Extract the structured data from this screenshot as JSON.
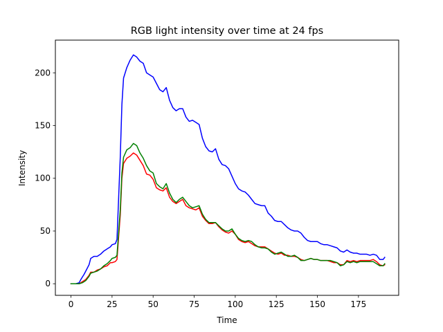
{
  "chart_data": {
    "type": "line",
    "title": "RGB light intensity over time at 24 fps",
    "xlabel": "Time",
    "ylabel": "Intensity",
    "xlim": [
      -9.5,
      199.5
    ],
    "ylim": [
      -11,
      231
    ],
    "xticks": [
      0,
      25,
      50,
      75,
      100,
      125,
      150,
      175
    ],
    "yticks": [
      0,
      50,
      100,
      150,
      200
    ],
    "grid": false,
    "legend": "none",
    "series": [
      {
        "color": "#0000ff",
        "points": [
          [
            0,
            0
          ],
          [
            3,
            0
          ],
          [
            5,
            1
          ],
          [
            6,
            4
          ],
          [
            8,
            9
          ],
          [
            10,
            15
          ],
          [
            11,
            18
          ],
          [
            12,
            24
          ],
          [
            14,
            26
          ],
          [
            16,
            26
          ],
          [
            18,
            28
          ],
          [
            20,
            31
          ],
          [
            22,
            33
          ],
          [
            24,
            35
          ],
          [
            25,
            37
          ],
          [
            27,
            38
          ],
          [
            28,
            42
          ],
          [
            30,
            120
          ],
          [
            31,
            170
          ],
          [
            32,
            195
          ],
          [
            34,
            205
          ],
          [
            36,
            212
          ],
          [
            38,
            217
          ],
          [
            40,
            215
          ],
          [
            42,
            211
          ],
          [
            44,
            209
          ],
          [
            46,
            200
          ],
          [
            48,
            198
          ],
          [
            50,
            196
          ],
          [
            52,
            190
          ],
          [
            54,
            184
          ],
          [
            56,
            182
          ],
          [
            58,
            186
          ],
          [
            60,
            174
          ],
          [
            62,
            167
          ],
          [
            64,
            164
          ],
          [
            66,
            166
          ],
          [
            68,
            166
          ],
          [
            70,
            158
          ],
          [
            72,
            154
          ],
          [
            74,
            155
          ],
          [
            76,
            153
          ],
          [
            78,
            151
          ],
          [
            80,
            138
          ],
          [
            82,
            130
          ],
          [
            84,
            126
          ],
          [
            86,
            125
          ],
          [
            88,
            128
          ],
          [
            90,
            118
          ],
          [
            92,
            113
          ],
          [
            94,
            112
          ],
          [
            96,
            109
          ],
          [
            98,
            102
          ],
          [
            100,
            95
          ],
          [
            102,
            90
          ],
          [
            104,
            88
          ],
          [
            106,
            87
          ],
          [
            108,
            84
          ],
          [
            110,
            80
          ],
          [
            112,
            76
          ],
          [
            114,
            75
          ],
          [
            116,
            74
          ],
          [
            118,
            74
          ],
          [
            120,
            67
          ],
          [
            122,
            64
          ],
          [
            124,
            60
          ],
          [
            126,
            59
          ],
          [
            128,
            59
          ],
          [
            130,
            56
          ],
          [
            132,
            53
          ],
          [
            134,
            51
          ],
          [
            136,
            50
          ],
          [
            138,
            50
          ],
          [
            140,
            48
          ],
          [
            142,
            44
          ],
          [
            144,
            41
          ],
          [
            146,
            40
          ],
          [
            148,
            40
          ],
          [
            150,
            40
          ],
          [
            152,
            38
          ],
          [
            154,
            37
          ],
          [
            156,
            37
          ],
          [
            158,
            36
          ],
          [
            160,
            35
          ],
          [
            162,
            34
          ],
          [
            164,
            31
          ],
          [
            166,
            30
          ],
          [
            168,
            32
          ],
          [
            170,
            30
          ],
          [
            172,
            29
          ],
          [
            174,
            29
          ],
          [
            176,
            28
          ],
          [
            178,
            28
          ],
          [
            180,
            28
          ],
          [
            182,
            27
          ],
          [
            184,
            28
          ],
          [
            186,
            27
          ],
          [
            188,
            23
          ],
          [
            190,
            23
          ],
          [
            191,
            25
          ]
        ]
      },
      {
        "color": "#ff0000",
        "points": [
          [
            0,
            0
          ],
          [
            3,
            0
          ],
          [
            5,
            0
          ],
          [
            7,
            2
          ],
          [
            9,
            4
          ],
          [
            11,
            8
          ],
          [
            12,
            11
          ],
          [
            14,
            11
          ],
          [
            16,
            13
          ],
          [
            18,
            14
          ],
          [
            20,
            16
          ],
          [
            22,
            17
          ],
          [
            24,
            20
          ],
          [
            25,
            20
          ],
          [
            27,
            21
          ],
          [
            28,
            23
          ],
          [
            30,
            65
          ],
          [
            31,
            100
          ],
          [
            32,
            114
          ],
          [
            34,
            119
          ],
          [
            36,
            121
          ],
          [
            38,
            124
          ],
          [
            40,
            122
          ],
          [
            42,
            117
          ],
          [
            44,
            112
          ],
          [
            46,
            104
          ],
          [
            48,
            103
          ],
          [
            50,
            99
          ],
          [
            52,
            91
          ],
          [
            54,
            89
          ],
          [
            56,
            88
          ],
          [
            58,
            91
          ],
          [
            60,
            82
          ],
          [
            62,
            78
          ],
          [
            64,
            76
          ],
          [
            66,
            78
          ],
          [
            68,
            80
          ],
          [
            70,
            74
          ],
          [
            72,
            72
          ],
          [
            74,
            71
          ],
          [
            76,
            70
          ],
          [
            78,
            72
          ],
          [
            80,
            64
          ],
          [
            82,
            60
          ],
          [
            84,
            57
          ],
          [
            86,
            57
          ],
          [
            88,
            58
          ],
          [
            90,
            54
          ],
          [
            92,
            51
          ],
          [
            94,
            49
          ],
          [
            96,
            48
          ],
          [
            98,
            50
          ],
          [
            100,
            47
          ],
          [
            102,
            42
          ],
          [
            104,
            40
          ],
          [
            106,
            39
          ],
          [
            108,
            40
          ],
          [
            110,
            38
          ],
          [
            112,
            36
          ],
          [
            114,
            35
          ],
          [
            116,
            35
          ],
          [
            118,
            35
          ],
          [
            120,
            33
          ],
          [
            122,
            31
          ],
          [
            124,
            29
          ],
          [
            126,
            28
          ],
          [
            128,
            29
          ],
          [
            130,
            27
          ],
          [
            132,
            27
          ],
          [
            134,
            26
          ],
          [
            136,
            26
          ],
          [
            138,
            25
          ],
          [
            140,
            23
          ],
          [
            142,
            22
          ],
          [
            144,
            23
          ],
          [
            146,
            24
          ],
          [
            148,
            23
          ],
          [
            150,
            23
          ],
          [
            152,
            22
          ],
          [
            154,
            22
          ],
          [
            156,
            22
          ],
          [
            158,
            21
          ],
          [
            160,
            20
          ],
          [
            162,
            20
          ],
          [
            164,
            18
          ],
          [
            166,
            18
          ],
          [
            168,
            22
          ],
          [
            170,
            21
          ],
          [
            172,
            22
          ],
          [
            174,
            21
          ],
          [
            176,
            22
          ],
          [
            178,
            22
          ],
          [
            180,
            22
          ],
          [
            182,
            22
          ],
          [
            184,
            23
          ],
          [
            186,
            21
          ],
          [
            188,
            18
          ],
          [
            190,
            17
          ],
          [
            191,
            18
          ]
        ]
      },
      {
        "color": "#008000",
        "points": [
          [
            0,
            0
          ],
          [
            3,
            0
          ],
          [
            5,
            0
          ],
          [
            7,
            1
          ],
          [
            9,
            3
          ],
          [
            11,
            7
          ],
          [
            12,
            10
          ],
          [
            14,
            11
          ],
          [
            16,
            12
          ],
          [
            18,
            14
          ],
          [
            20,
            17
          ],
          [
            22,
            19
          ],
          [
            24,
            22
          ],
          [
            25,
            24
          ],
          [
            27,
            25
          ],
          [
            28,
            27
          ],
          [
            30,
            70
          ],
          [
            31,
            105
          ],
          [
            32,
            120
          ],
          [
            34,
            127
          ],
          [
            36,
            129
          ],
          [
            38,
            133
          ],
          [
            40,
            131
          ],
          [
            42,
            124
          ],
          [
            44,
            119
          ],
          [
            46,
            112
          ],
          [
            48,
            107
          ],
          [
            50,
            105
          ],
          [
            52,
            95
          ],
          [
            54,
            92
          ],
          [
            56,
            90
          ],
          [
            58,
            95
          ],
          [
            60,
            86
          ],
          [
            62,
            80
          ],
          [
            64,
            77
          ],
          [
            66,
            80
          ],
          [
            68,
            82
          ],
          [
            70,
            78
          ],
          [
            72,
            74
          ],
          [
            74,
            72
          ],
          [
            76,
            73
          ],
          [
            78,
            74
          ],
          [
            80,
            66
          ],
          [
            82,
            61
          ],
          [
            84,
            58
          ],
          [
            86,
            58
          ],
          [
            88,
            58
          ],
          [
            90,
            55
          ],
          [
            92,
            52
          ],
          [
            94,
            50
          ],
          [
            96,
            50
          ],
          [
            98,
            52
          ],
          [
            100,
            47
          ],
          [
            102,
            43
          ],
          [
            104,
            41
          ],
          [
            106,
            40
          ],
          [
            108,
            41
          ],
          [
            110,
            40
          ],
          [
            112,
            37
          ],
          [
            114,
            35
          ],
          [
            116,
            34
          ],
          [
            118,
            34
          ],
          [
            120,
            33
          ],
          [
            122,
            30
          ],
          [
            124,
            28
          ],
          [
            126,
            29
          ],
          [
            128,
            30
          ],
          [
            130,
            28
          ],
          [
            132,
            26
          ],
          [
            134,
            26
          ],
          [
            136,
            27
          ],
          [
            138,
            25
          ],
          [
            140,
            22
          ],
          [
            142,
            22
          ],
          [
            144,
            23
          ],
          [
            146,
            24
          ],
          [
            148,
            23
          ],
          [
            150,
            23
          ],
          [
            152,
            22
          ],
          [
            154,
            22
          ],
          [
            156,
            22
          ],
          [
            158,
            22
          ],
          [
            160,
            21
          ],
          [
            162,
            20
          ],
          [
            164,
            17
          ],
          [
            166,
            18
          ],
          [
            168,
            21
          ],
          [
            170,
            20
          ],
          [
            172,
            21
          ],
          [
            174,
            20
          ],
          [
            176,
            21
          ],
          [
            178,
            21
          ],
          [
            180,
            21
          ],
          [
            182,
            21
          ],
          [
            184,
            21
          ],
          [
            186,
            19
          ],
          [
            188,
            17
          ],
          [
            190,
            17
          ],
          [
            191,
            19
          ]
        ]
      }
    ]
  }
}
